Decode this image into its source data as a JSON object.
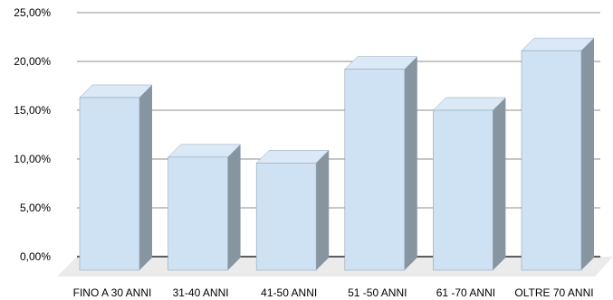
{
  "chart_data": {
    "type": "bar",
    "title": "",
    "xlabel": "",
    "ylabel": "",
    "categories": [
      "FINO A 30 ANNI",
      "31-40 ANNI",
      "41-50 ANNI",
      "51 -50 ANNI",
      "61 -70 ANNI",
      "OLTRE 70 ANNI"
    ],
    "values": [
      16.3,
      10.2,
      9.6,
      19.2,
      15.0,
      21.1
    ],
    "ylim": [
      0,
      25
    ],
    "yticks": [
      "0,00%",
      "5,00%",
      "10,00%",
      "15,00%",
      "20,00%",
      "25,00%"
    ],
    "grid": true,
    "legend": "none",
    "colors": {
      "bar_front": "#cfe2f3",
      "bar_top": "#dbe9f6",
      "bar_side": "#8795a1",
      "bar_edge": "#8fa5b8",
      "grid": "#8c8c8c",
      "floor": "#ebebeb"
    }
  }
}
